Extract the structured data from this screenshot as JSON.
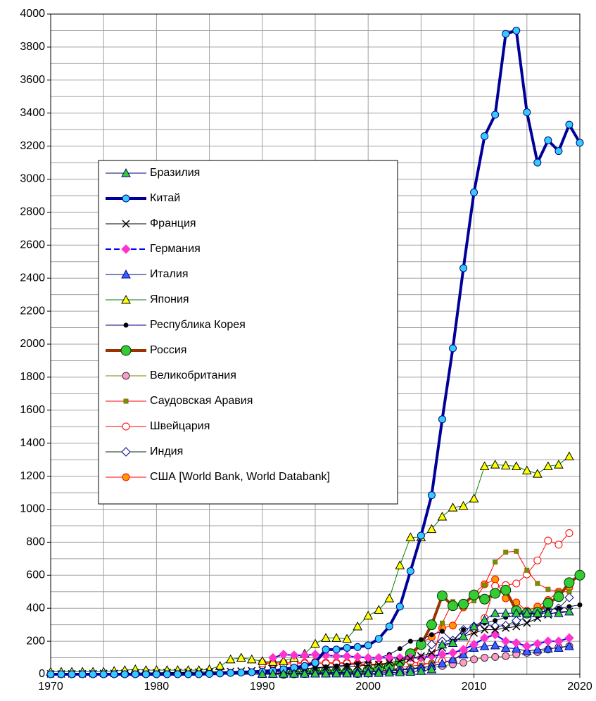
{
  "chart_data": {
    "type": "line",
    "x": [
      1970,
      1971,
      1972,
      1973,
      1974,
      1975,
      1976,
      1977,
      1978,
      1979,
      1980,
      1981,
      1982,
      1983,
      1984,
      1985,
      1986,
      1987,
      1988,
      1989,
      1990,
      1991,
      1992,
      1993,
      1994,
      1995,
      1996,
      1997,
      1998,
      1999,
      2000,
      2001,
      2002,
      2003,
      2004,
      2005,
      2006,
      2007,
      2008,
      2009,
      2010,
      2011,
      2012,
      2013,
      2014,
      2015,
      2016,
      2017,
      2018,
      2019,
      2020
    ],
    "xlim": [
      1970,
      2020
    ],
    "xticks": [
      1970,
      1980,
      1990,
      2000,
      2010,
      2020
    ],
    "xminorticks": [
      1975,
      1985,
      1995,
      2005,
      2015
    ],
    "ylim": [
      0,
      4000
    ],
    "yticks": [
      0,
      200,
      400,
      600,
      800,
      1000,
      1200,
      1400,
      1600,
      1800,
      2000,
      2200,
      2400,
      2600,
      2800,
      3000,
      3200,
      3400,
      3600,
      3800,
      4000
    ],
    "yminorticks": [
      100,
      300,
      500,
      700,
      900,
      1100,
      1300,
      1500,
      1700,
      1900,
      2100,
      2300,
      2500,
      2700,
      2900,
      3100,
      3300,
      3500,
      3700,
      3900
    ],
    "grid": true,
    "legend": "center-left",
    "series": [
      {
        "name": "Бразилия",
        "color": "#000080",
        "width": 1,
        "marker": "triangle",
        "marker_fill": "#33cc33",
        "marker_stroke": "#000080",
        "values": [
          null,
          null,
          null,
          null,
          null,
          null,
          null,
          null,
          null,
          null,
          null,
          null,
          null,
          null,
          null,
          null,
          null,
          null,
          null,
          null,
          2,
          2,
          3,
          3,
          3,
          4,
          4,
          5,
          5,
          5,
          6,
          8,
          10,
          12,
          15,
          20,
          30,
          180,
          190,
          230,
          290,
          330,
          370,
          370,
          370,
          370,
          370,
          370,
          370,
          380,
          null
        ]
      },
      {
        "name": "Китай",
        "color": "#000099",
        "width": 4,
        "marker": "circle",
        "marker_fill": "#33ccff",
        "marker_stroke": "#000080",
        "values": [
          0,
          0,
          0,
          0,
          0,
          0,
          0,
          0,
          0,
          0,
          0,
          0,
          0,
          0,
          0,
          2,
          5,
          8,
          10,
          12,
          15,
          20,
          30,
          40,
          50,
          70,
          150,
          150,
          160,
          165,
          175,
          215,
          290,
          410,
          625,
          840,
          1085,
          1545,
          1975,
          2460,
          2920,
          3260,
          3390,
          3880,
          3900,
          3405,
          3100,
          3235,
          3170,
          3330,
          3220
        ]
      },
      {
        "name": "Франция",
        "color": "#000000",
        "width": 1,
        "marker": "x",
        "marker_fill": "#000000",
        "marker_stroke": "#000000",
        "values": [
          2,
          2,
          3,
          3,
          4,
          5,
          5,
          6,
          7,
          8,
          9,
          10,
          11,
          12,
          13,
          14,
          15,
          17,
          19,
          21,
          25,
          28,
          30,
          33,
          35,
          38,
          40,
          43,
          46,
          50,
          55,
          60,
          70,
          80,
          95,
          110,
          130,
          160,
          200,
          230,
          250,
          270,
          270,
          280,
          290,
          310,
          340,
          360,
          380,
          380,
          null
        ]
      },
      {
        "name": "Германия",
        "color": "#0000ff",
        "width": 2,
        "marker": "diamond",
        "marker_fill": "#ff33cc",
        "marker_stroke": "#ff33cc",
        "values": [
          null,
          null,
          null,
          null,
          null,
          null,
          null,
          null,
          null,
          null,
          null,
          null,
          null,
          null,
          null,
          null,
          null,
          null,
          null,
          null,
          null,
          100,
          120,
          115,
          115,
          120,
          115,
          110,
          110,
          105,
          100,
          100,
          100,
          100,
          100,
          100,
          110,
          120,
          130,
          150,
          180,
          220,
          240,
          200,
          190,
          170,
          185,
          200,
          200,
          220,
          null
        ]
      },
      {
        "name": "Италия",
        "color": "#000080",
        "width": 1,
        "marker": "triangle",
        "marker_fill": "#3366ff",
        "marker_stroke": "#000080",
        "values": [
          null,
          null,
          null,
          null,
          null,
          null,
          null,
          null,
          null,
          null,
          null,
          null,
          null,
          null,
          null,
          null,
          null,
          null,
          null,
          null,
          5,
          5,
          6,
          6,
          7,
          8,
          9,
          10,
          12,
          14,
          16,
          18,
          20,
          25,
          30,
          40,
          50,
          65,
          90,
          120,
          160,
          170,
          175,
          160,
          155,
          140,
          150,
          155,
          160,
          170,
          null
        ]
      },
      {
        "name": "Япония",
        "color": "#008000",
        "width": 1,
        "marker": "triangle",
        "marker_fill": "#ffff00",
        "marker_stroke": "#000000",
        "values": [
          15,
          15,
          15,
          15,
          15,
          15,
          20,
          25,
          30,
          25,
          25,
          25,
          25,
          25,
          25,
          30,
          50,
          90,
          100,
          90,
          80,
          75,
          80,
          100,
          125,
          185,
          220,
          220,
          215,
          290,
          355,
          390,
          460,
          660,
          830,
          830,
          880,
          955,
          1010,
          1020,
          1065,
          1260,
          1270,
          1265,
          1260,
          1235,
          1215,
          1260,
          1270,
          1320,
          null
        ]
      },
      {
        "name": "Республика Корея",
        "color": "#000080",
        "width": 1,
        "marker": "dot",
        "marker_fill": "#000000",
        "marker_stroke": "#000000",
        "values": [
          1,
          1,
          2,
          2,
          3,
          3,
          4,
          5,
          6,
          7,
          8,
          9,
          10,
          11,
          12,
          13,
          14,
          15,
          17,
          19,
          20,
          22,
          25,
          28,
          32,
          40,
          45,
          50,
          55,
          65,
          80,
          100,
          120,
          155,
          200,
          210,
          240,
          260,
          200,
          270,
          290,
          310,
          325,
          345,
          360,
          365,
          370,
          390,
          400,
          410,
          420
        ]
      },
      {
        "name": "Россия",
        "color": "#993300",
        "width": 4,
        "marker": "bigcircle",
        "marker_fill": "#33cc33",
        "marker_stroke": "#003300",
        "values": [
          null,
          null,
          null,
          null,
          null,
          null,
          null,
          null,
          null,
          null,
          null,
          null,
          null,
          null,
          null,
          null,
          null,
          null,
          null,
          null,
          null,
          null,
          5,
          8,
          10,
          15,
          15,
          15,
          15,
          10,
          25,
          35,
          45,
          75,
          125,
          180,
          300,
          475,
          415,
          425,
          480,
          455,
          490,
          510,
          385,
          370,
          375,
          430,
          470,
          555,
          600
        ]
      },
      {
        "name": "Великобритания",
        "color": "#808000",
        "width": 1,
        "marker": "circle",
        "marker_fill": "#ff99cc",
        "marker_stroke": "#333333",
        "values": [
          null,
          null,
          null,
          null,
          null,
          null,
          null,
          null,
          null,
          null,
          null,
          null,
          null,
          null,
          null,
          null,
          null,
          null,
          null,
          null,
          5,
          5,
          6,
          6,
          7,
          8,
          9,
          10,
          11,
          12,
          14,
          16,
          20,
          25,
          30,
          35,
          40,
          50,
          60,
          70,
          90,
          100,
          105,
          110,
          120,
          130,
          135,
          150,
          165,
          170,
          null
        ]
      },
      {
        "name": "Саудовская Аравия",
        "color": "#ff0000",
        "width": 1,
        "marker": "square",
        "marker_fill": "#669900",
        "marker_stroke": "#996600",
        "values": [
          null,
          null,
          null,
          null,
          null,
          null,
          null,
          null,
          null,
          null,
          null,
          null,
          null,
          null,
          null,
          null,
          null,
          null,
          null,
          null,
          10,
          12,
          15,
          15,
          15,
          15,
          15,
          18,
          18,
          18,
          20,
          20,
          25,
          40,
          50,
          55,
          70,
          310,
          440,
          410,
          445,
          540,
          680,
          740,
          745,
          630,
          550,
          515,
          500,
          500,
          null
        ]
      },
      {
        "name": "Швейцария",
        "color": "#ff0000",
        "width": 1,
        "marker": "circle",
        "marker_fill": "#ffffff",
        "marker_stroke": "#ff0000",
        "values": [
          null,
          null,
          null,
          null,
          null,
          null,
          null,
          null,
          null,
          null,
          null,
          null,
          null,
          null,
          null,
          null,
          null,
          null,
          null,
          null,
          65,
          65,
          60,
          65,
          65,
          65,
          65,
          65,
          65,
          60,
          55,
          55,
          60,
          70,
          75,
          65,
          65,
          80,
          80,
          135,
          265,
          340,
          535,
          540,
          550,
          605,
          690,
          810,
          785,
          855,
          null
        ]
      },
      {
        "name": "Индия",
        "color": "#003300",
        "width": 1,
        "marker": "diamond",
        "marker_fill": "#ffffff",
        "marker_stroke": "#000099",
        "values": [
          null,
          null,
          null,
          null,
          null,
          null,
          null,
          null,
          null,
          null,
          null,
          null,
          null,
          null,
          null,
          null,
          null,
          null,
          null,
          null,
          5,
          6,
          7,
          8,
          9,
          10,
          12,
          14,
          16,
          18,
          20,
          22,
          25,
          30,
          35,
          40,
          180,
          200,
          205,
          270,
          290,
          300,
          290,
          295,
          325,
          340,
          360,
          390,
          400,
          465,
          null
        ]
      },
      {
        "name": "США [World Bank, World Databank]",
        "color": "#ff0000",
        "width": 1,
        "marker": "circle",
        "marker_fill": "#ff9900",
        "marker_stroke": "#ff0000",
        "values": [
          null,
          null,
          null,
          null,
          null,
          null,
          null,
          null,
          null,
          null,
          null,
          null,
          null,
          null,
          null,
          null,
          null,
          null,
          null,
          null,
          70,
          70,
          70,
          70,
          70,
          75,
          70,
          70,
          70,
          65,
          60,
          60,
          60,
          65,
          75,
          190,
          225,
          280,
          295,
          405,
          490,
          545,
          575,
          460,
          435,
          385,
          410,
          450,
          500,
          525,
          null
        ]
      }
    ]
  }
}
